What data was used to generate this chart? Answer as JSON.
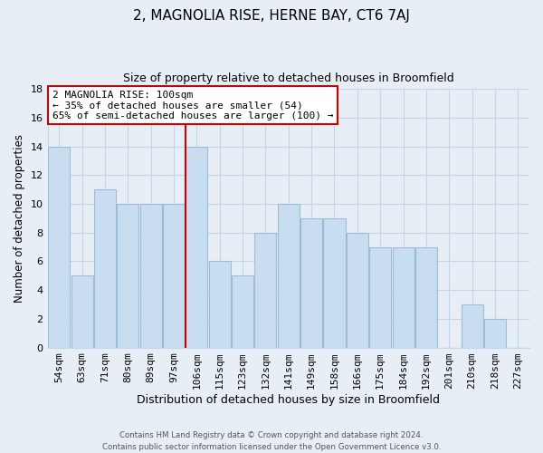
{
  "title": "2, MAGNOLIA RISE, HERNE BAY, CT6 7AJ",
  "subtitle": "Size of property relative to detached houses in Broomfield",
  "xlabel": "Distribution of detached houses by size in Broomfield",
  "ylabel": "Number of detached properties",
  "bar_labels": [
    "54sqm",
    "63sqm",
    "71sqm",
    "80sqm",
    "89sqm",
    "97sqm",
    "106sqm",
    "115sqm",
    "123sqm",
    "132sqm",
    "141sqm",
    "149sqm",
    "158sqm",
    "166sqm",
    "175sqm",
    "184sqm",
    "192sqm",
    "201sqm",
    "210sqm",
    "218sqm",
    "227sqm"
  ],
  "bar_heights": [
    14,
    5,
    11,
    10,
    10,
    10,
    14,
    6,
    5,
    8,
    10,
    9,
    9,
    8,
    7,
    7,
    7,
    0,
    3,
    2,
    0
  ],
  "bar_color": "#c8ddf0",
  "bar_edge_color": "#9bbcd8",
  "highlight_bar_index": 6,
  "highlight_line_color": "#cc0000",
  "ylim": [
    0,
    18
  ],
  "yticks": [
    0,
    2,
    4,
    6,
    8,
    10,
    12,
    14,
    16,
    18
  ],
  "annotation_title": "2 MAGNOLIA RISE: 100sqm",
  "annotation_line1": "← 35% of detached houses are smaller (54)",
  "annotation_line2": "65% of semi-detached houses are larger (100) →",
  "annotation_box_facecolor": "#ffffff",
  "annotation_box_edgecolor": "#cc0000",
  "footer_line1": "Contains HM Land Registry data © Crown copyright and database right 2024.",
  "footer_line2": "Contains public sector information licensed under the Open Government Licence v3.0.",
  "background_color": "#e8eef5",
  "plot_bg_color": "#e8eef5",
  "grid_color": "#c5d5e8"
}
